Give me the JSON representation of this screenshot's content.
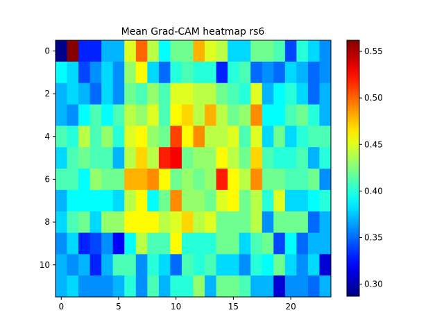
{
  "chart_data": {
    "type": "heatmap",
    "title": "Mean Grad-CAM heatmap rs6",
    "xlabel": "",
    "ylabel": "",
    "colormap": "jet",
    "vmin": 0.287,
    "vmax": 0.562,
    "x_ticks": [
      0,
      5,
      10,
      15,
      20
    ],
    "y_ticks": [
      0,
      2,
      4,
      6,
      8,
      10
    ],
    "colorbar_ticks": [
      0.3,
      0.35,
      0.4,
      0.45,
      0.5,
      0.55
    ],
    "colorbar_tick_labels": [
      "0.30",
      "0.35",
      "0.40",
      "0.45",
      "0.50",
      "0.55"
    ],
    "values": [
      [
        0.29,
        0.56,
        0.33,
        0.33,
        0.37,
        0.37,
        0.45,
        0.5,
        0.44,
        0.39,
        0.42,
        0.42,
        0.48,
        0.45,
        0.44,
        0.38,
        0.38,
        0.42,
        0.42,
        0.41,
        0.34,
        0.4,
        0.38,
        0.36
      ],
      [
        0.39,
        0.38,
        0.34,
        0.36,
        0.38,
        0.36,
        0.43,
        0.46,
        0.38,
        0.35,
        0.4,
        0.41,
        0.4,
        0.4,
        0.33,
        0.4,
        0.41,
        0.35,
        0.36,
        0.35,
        0.38,
        0.37,
        0.35,
        0.36
      ],
      [
        0.37,
        0.38,
        0.37,
        0.35,
        0.38,
        0.36,
        0.42,
        0.41,
        0.43,
        0.41,
        0.45,
        0.45,
        0.44,
        0.44,
        0.42,
        0.41,
        0.4,
        0.45,
        0.37,
        0.39,
        0.4,
        0.38,
        0.35,
        0.37
      ],
      [
        0.37,
        0.36,
        0.39,
        0.41,
        0.39,
        0.41,
        0.44,
        0.43,
        0.45,
        0.41,
        0.46,
        0.47,
        0.44,
        0.48,
        0.44,
        0.42,
        0.43,
        0.49,
        0.39,
        0.39,
        0.41,
        0.42,
        0.4,
        0.37
      ],
      [
        0.41,
        0.4,
        0.44,
        0.41,
        0.43,
        0.4,
        0.45,
        0.46,
        0.43,
        0.42,
        0.51,
        0.46,
        0.49,
        0.44,
        0.44,
        0.45,
        0.41,
        0.45,
        0.38,
        0.42,
        0.38,
        0.4,
        0.41,
        0.41
      ],
      [
        0.38,
        0.41,
        0.42,
        0.41,
        0.41,
        0.37,
        0.44,
        0.47,
        0.44,
        0.52,
        0.53,
        0.42,
        0.43,
        0.43,
        0.46,
        0.44,
        0.42,
        0.47,
        0.41,
        0.4,
        0.4,
        0.41,
        0.37,
        0.4
      ],
      [
        0.41,
        0.41,
        0.39,
        0.43,
        0.42,
        0.42,
        0.48,
        0.48,
        0.49,
        0.46,
        0.42,
        0.43,
        0.42,
        0.43,
        0.52,
        0.46,
        0.44,
        0.49,
        0.42,
        0.42,
        0.41,
        0.41,
        0.42,
        0.36
      ],
      [
        0.37,
        0.39,
        0.39,
        0.39,
        0.39,
        0.38,
        0.44,
        0.46,
        0.39,
        0.42,
        0.49,
        0.43,
        0.43,
        0.42,
        0.45,
        0.46,
        0.42,
        0.44,
        0.4,
        0.45,
        0.38,
        0.38,
        0.39,
        0.4
      ],
      [
        0.38,
        0.41,
        0.42,
        0.38,
        0.43,
        0.43,
        0.46,
        0.46,
        0.46,
        0.44,
        0.45,
        0.47,
        0.44,
        0.45,
        0.42,
        0.42,
        0.42,
        0.44,
        0.36,
        0.42,
        0.42,
        0.42,
        0.35,
        0.37
      ],
      [
        0.36,
        0.38,
        0.33,
        0.34,
        0.36,
        0.32,
        0.39,
        0.44,
        0.41,
        0.41,
        0.46,
        0.4,
        0.4,
        0.4,
        0.42,
        0.42,
        0.38,
        0.41,
        0.42,
        0.34,
        0.39,
        0.35,
        0.37,
        0.37
      ],
      [
        0.37,
        0.36,
        0.37,
        0.33,
        0.37,
        0.41,
        0.41,
        0.36,
        0.4,
        0.38,
        0.35,
        0.41,
        0.4,
        0.41,
        0.38,
        0.38,
        0.36,
        0.4,
        0.39,
        0.42,
        0.38,
        0.36,
        0.38,
        0.31
      ],
      [
        0.37,
        0.38,
        0.36,
        0.36,
        0.36,
        0.37,
        0.4,
        0.36,
        0.41,
        0.37,
        0.4,
        0.4,
        0.43,
        0.37,
        0.42,
        0.42,
        0.41,
        0.37,
        0.37,
        0.31,
        0.36,
        0.36,
        0.35,
        0.37
      ]
    ]
  }
}
